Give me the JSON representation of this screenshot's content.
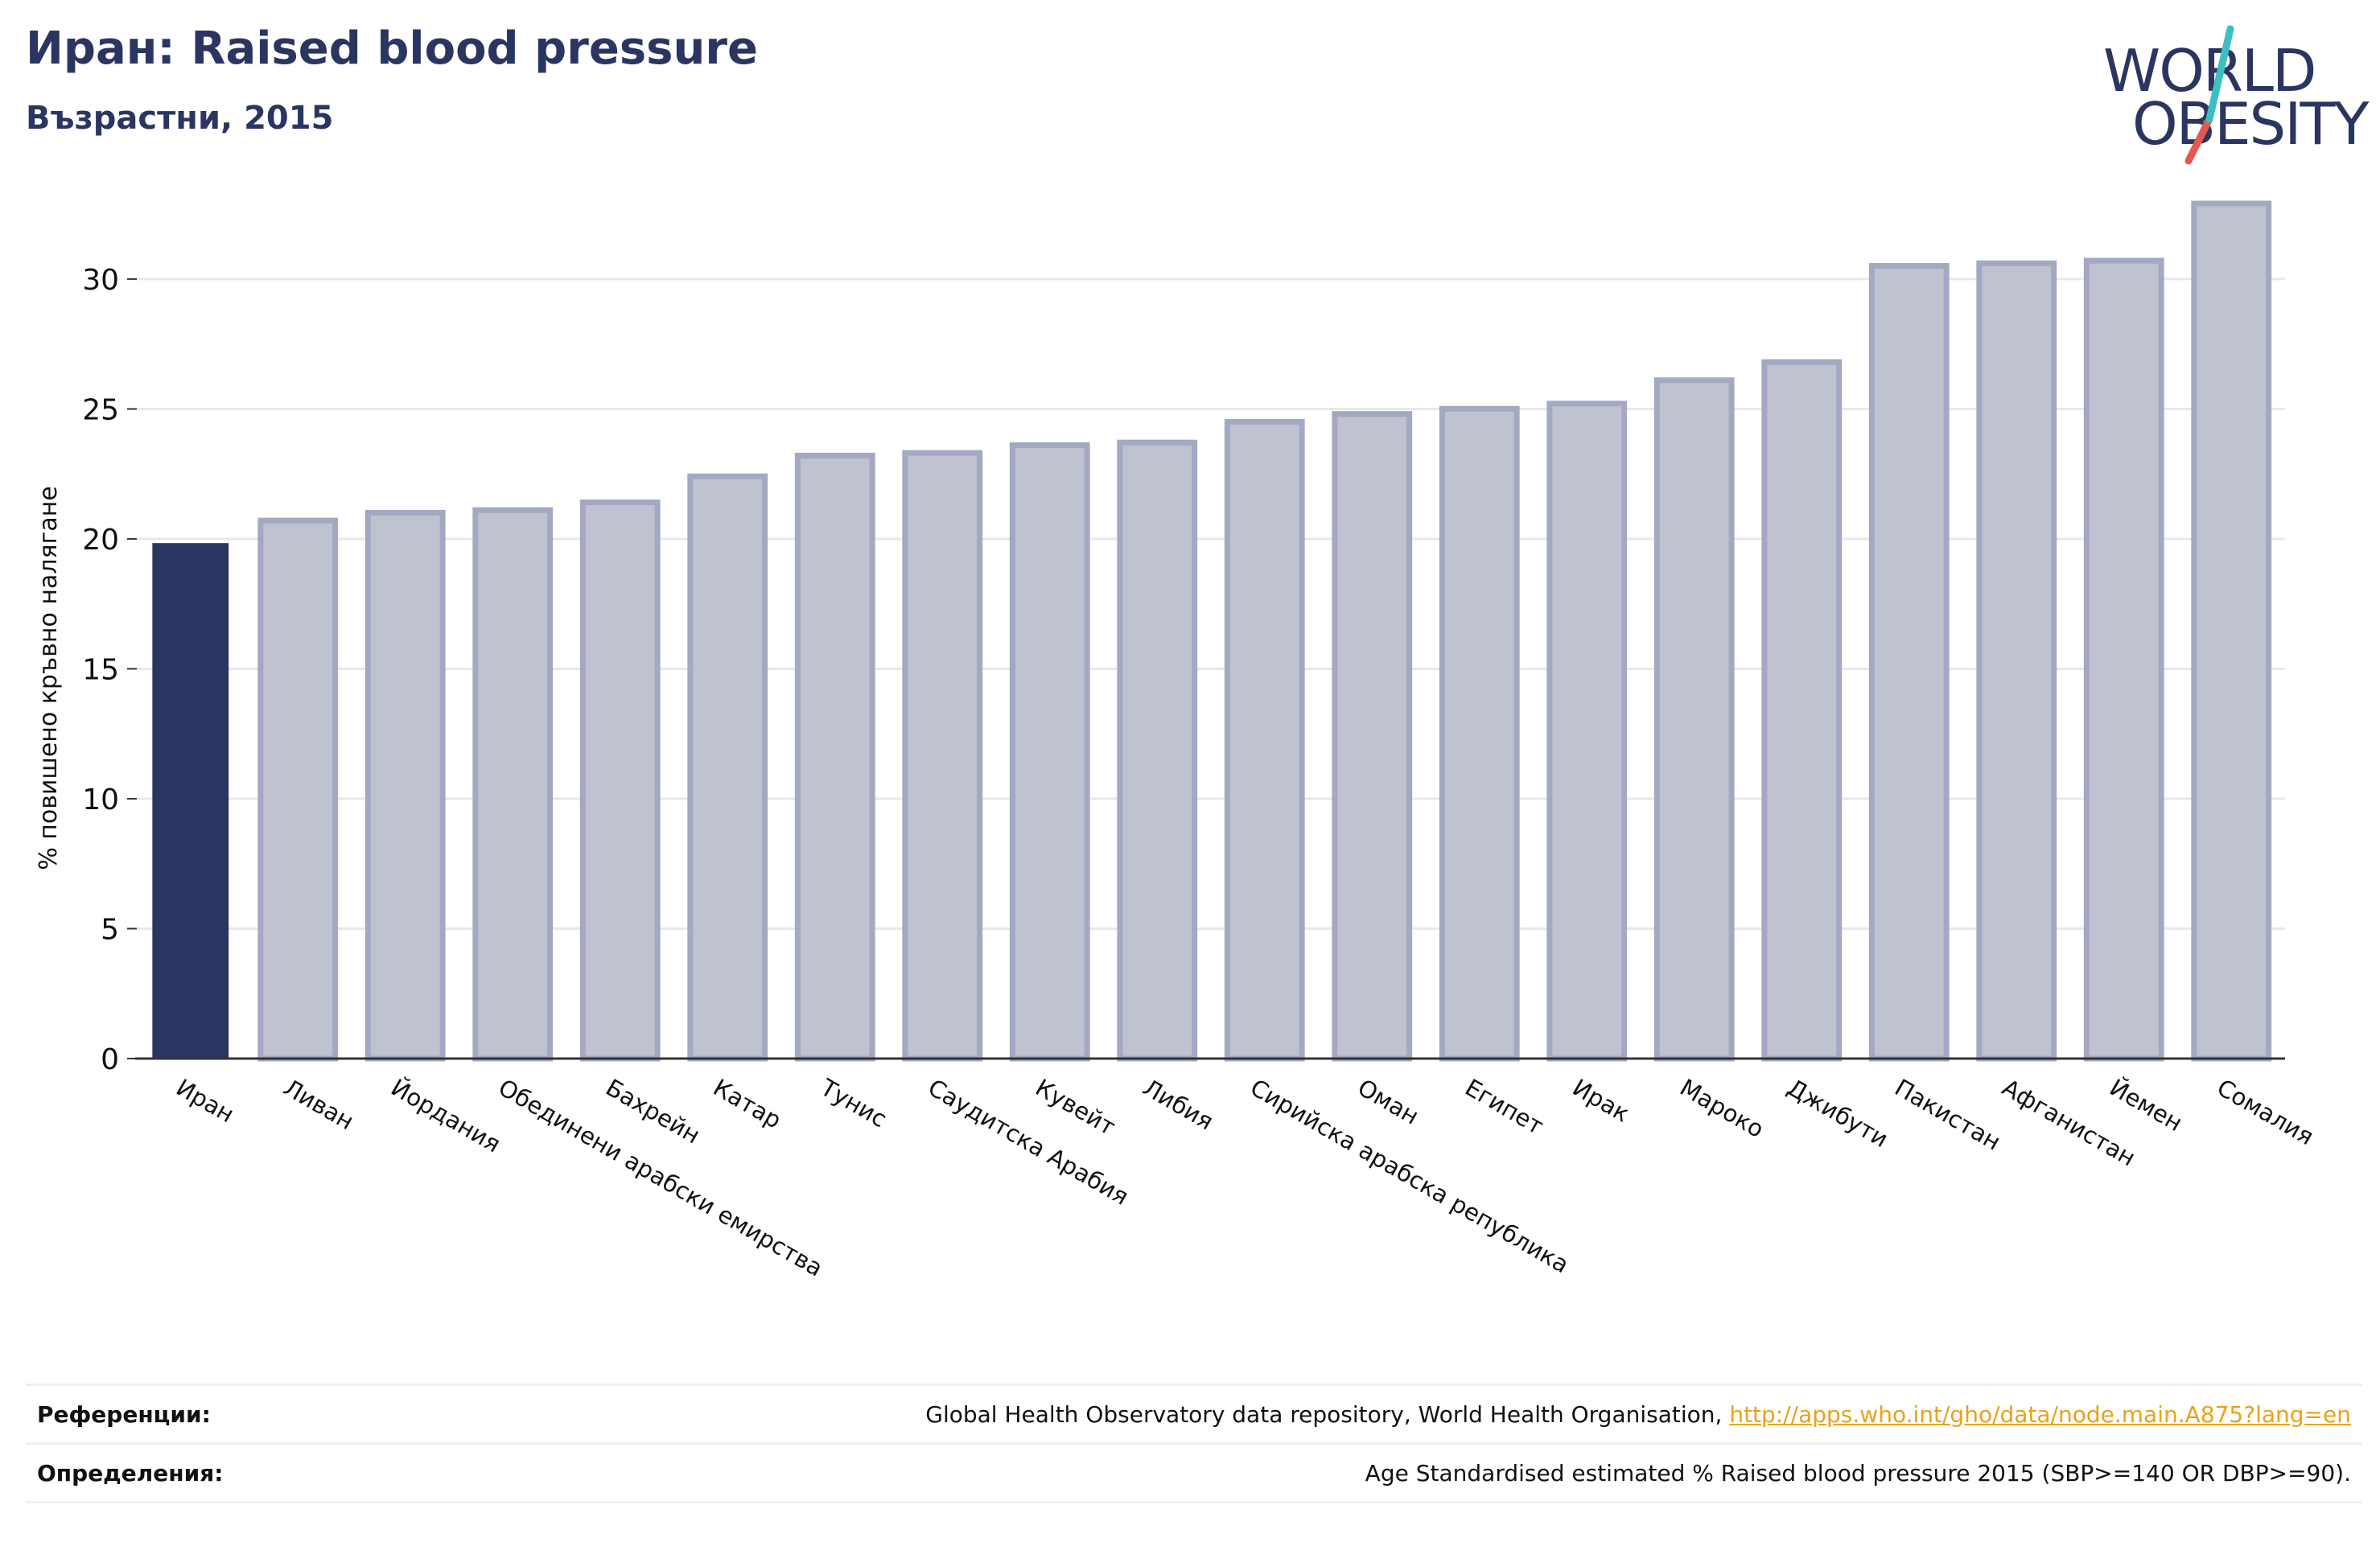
{
  "header": {
    "title": "Иран: Raised blood pressure",
    "subtitle": "Възрастни, 2015"
  },
  "logo": {
    "line1": "WORLD",
    "line2": "OBESITY",
    "brand_color": "#2b3561",
    "accent_teal": "#3bbfc1",
    "accent_red": "#e05a4f"
  },
  "colors": {
    "highlight_bar": "#2b3561",
    "other_bar_fill": "#bfc2cf",
    "other_bar_stroke": "#a3a8c3",
    "link": "#e8a317"
  },
  "chart_data": {
    "type": "bar",
    "title": "Иран: Raised blood pressure",
    "subtitle": "Възрастни, 2015",
    "xlabel": "",
    "ylabel": "% повишено кръвно налягане",
    "ylim": [
      0,
      33
    ],
    "yticks": [
      0,
      5,
      10,
      15,
      20,
      25,
      30
    ],
    "grid": true,
    "highlight": "Иран",
    "categories": [
      "Иран",
      "Ливан",
      "Йордания",
      "Обединени арабски емирства",
      "Бахрейн",
      "Катар",
      "Тунис",
      "Саудитска Арабия",
      "Кувейт",
      "Либия",
      "Сирийска арабска република",
      "Оман",
      "Египет",
      "Ирак",
      "Мароко",
      "Джибути",
      "Пакистан",
      "Афганистан",
      "Йемен",
      "Сомалия"
    ],
    "values": [
      19.9,
      20.8,
      21.1,
      21.2,
      21.5,
      22.5,
      23.3,
      23.4,
      23.7,
      23.8,
      24.6,
      24.9,
      25.1,
      25.3,
      26.2,
      26.9,
      30.6,
      30.7,
      30.8,
      33.0
    ]
  },
  "footer": {
    "references_label": "Референции:",
    "references_text": "Global Health Observatory data repository, World Health Organisation, ",
    "references_link": "http://apps.who.int/gho/data/node.main.A875?lang=en",
    "definitions_label": "Определения:",
    "definitions_text": "Age Standardised estimated % Raised blood pressure 2015 (SBP>=140 OR DBP>=90)."
  }
}
